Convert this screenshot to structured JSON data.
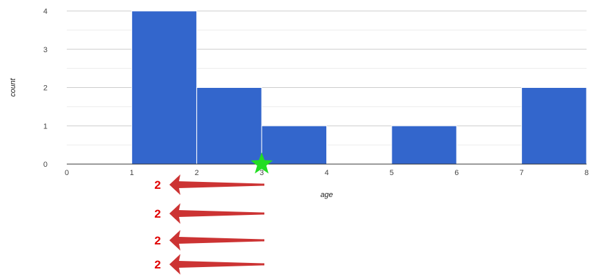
{
  "chart_data": {
    "type": "bar",
    "title": "",
    "xlabel": "age",
    "ylabel": "count",
    "bin_edges": [
      1,
      2,
      3,
      4,
      5,
      6,
      7,
      8
    ],
    "values": [
      4,
      2,
      1,
      0,
      1,
      0,
      2
    ],
    "xlim": [
      0,
      8
    ],
    "ylim": [
      0,
      4
    ],
    "x_ticks": [
      "0",
      "1",
      "2",
      "3",
      "4",
      "5",
      "6",
      "7",
      "8"
    ],
    "y_ticks": [
      "0",
      "1",
      "2",
      "3",
      "4"
    ],
    "grid": true,
    "colors": {
      "bar": "#3366cc",
      "bar_edge": "#ffffff",
      "grid": "#cccccc",
      "minor_grid": "#ececec",
      "axis": "#333333"
    }
  },
  "annotations": {
    "star": {
      "x": 3,
      "y": 0,
      "color": "#22dd22"
    },
    "arrow_color": "#cc3333",
    "arrow_labels": [
      "2",
      "2",
      "2",
      "2"
    ]
  }
}
